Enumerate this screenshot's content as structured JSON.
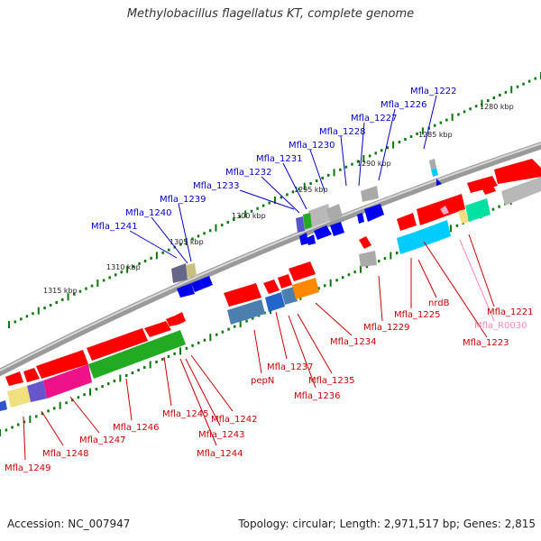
{
  "title": "Methylobacillus flagellatus KT, complete genome",
  "accession_label": "Accession: NC_007947",
  "summary_label": "Topology: circular; Length: 2,971,517 bp; Genes: 2,815",
  "scale_ticks": [
    "1280 kbp",
    "1285 kbp",
    "1290 kbp",
    "1295 kbp",
    "1300 kbp",
    "1305 kbp",
    "1310 kbp",
    "1315 kbp"
  ],
  "colors": {
    "backbone": "#999999",
    "forward_gene_label": "#0000cc",
    "reverse_gene_label": "#cc0000",
    "rna_label": "#ff88bb",
    "tick": "#0a7a0a"
  },
  "upper_gene_labels": [
    "Mfla_1222",
    "Mfla_1226",
    "Mfla_1227",
    "Mfla_1228",
    "Mfla_1230",
    "Mfla_1231",
    "Mfla_1232",
    "Mfla_1233",
    "Mfla_1239",
    "Mfla_1240",
    "Mfla_1241"
  ],
  "lower_gene_labels": [
    "Mfla_1221",
    "Mfla_R0030",
    "Mfla_1223",
    "nrdB",
    "Mfla_1225",
    "Mfla_1229",
    "Mfla_1234",
    "Mfla_1235",
    "Mfla_1236",
    "Mfla_1237",
    "pepN",
    "Mfla_1242",
    "Mfla_1243",
    "Mfla_1244",
    "Mfla_1245",
    "Mfla_1246",
    "Mfla_1247",
    "Mfla_1248",
    "Mfla_1249"
  ]
}
